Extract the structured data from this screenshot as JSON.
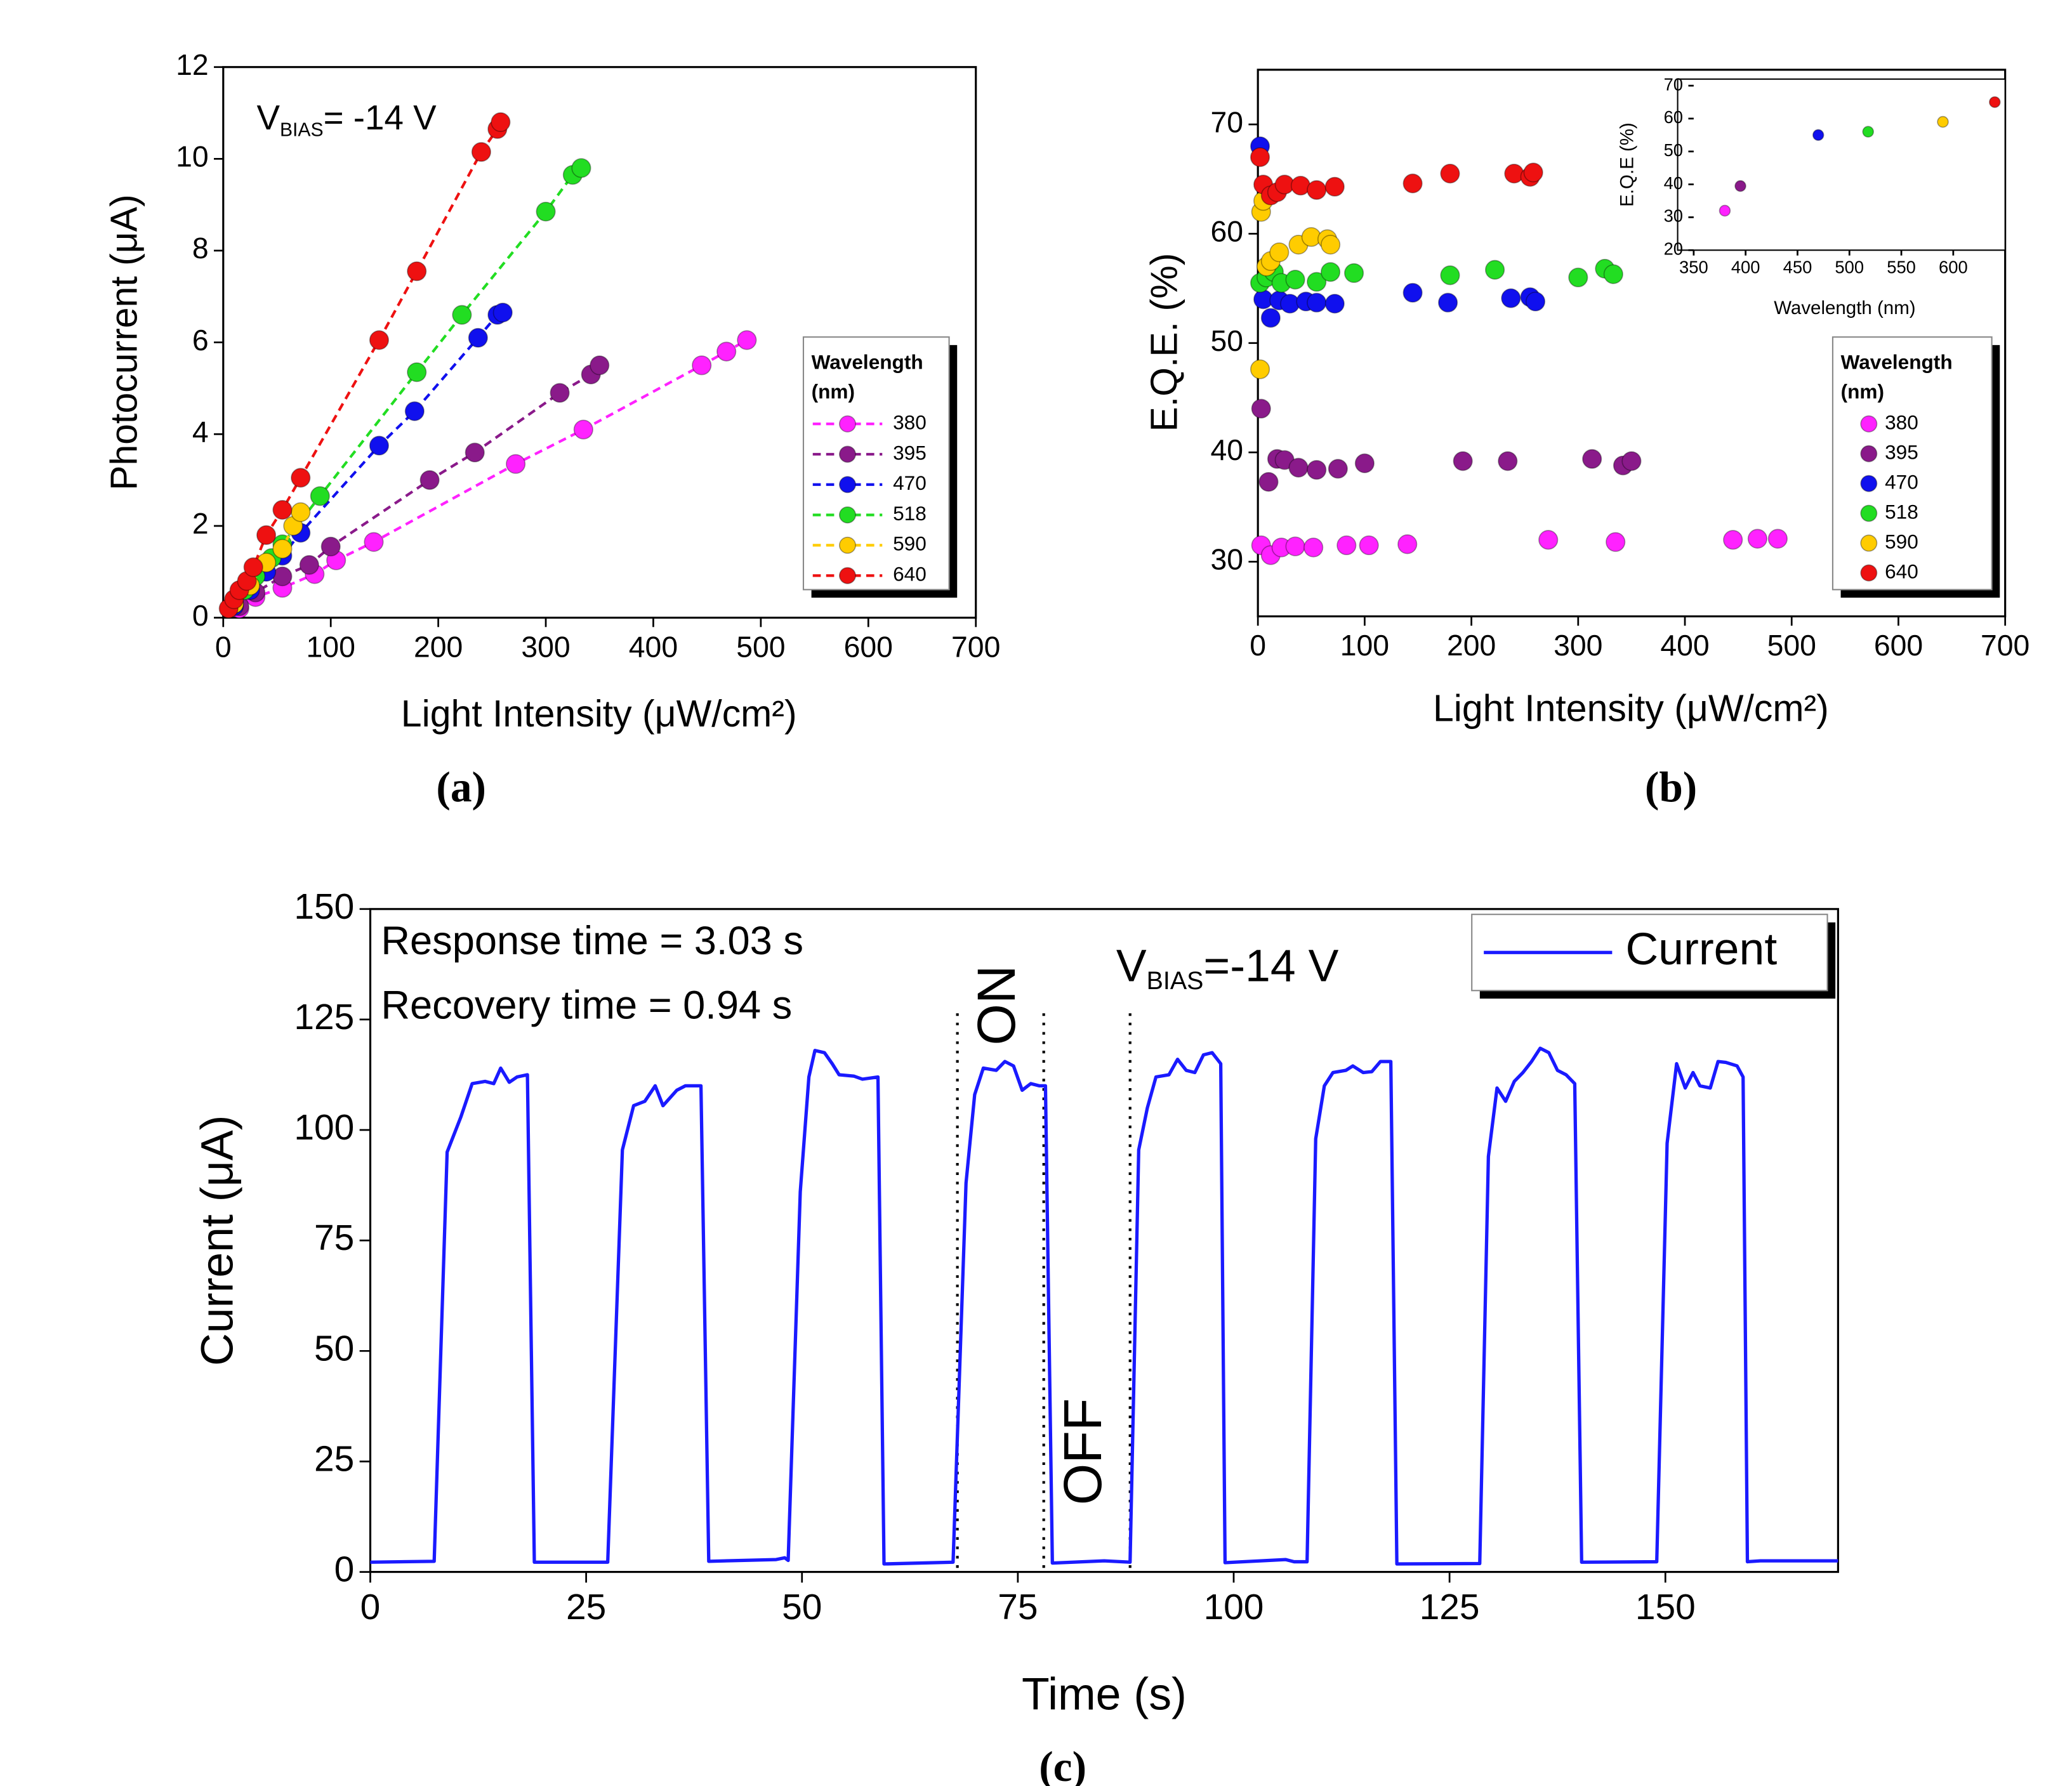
{
  "chart_data": [
    {
      "type": "scatter",
      "panel": "(a)",
      "fit_lines": true,
      "xlabel": "Light Intensity (μW/cm²)",
      "ylabel": "Photocurrent (μA)",
      "annotation": [
        "V",
        "BIAS",
        "= -14 V"
      ],
      "xlim": [
        0,
        700
      ],
      "xticks": [
        0,
        100,
        200,
        300,
        400,
        500,
        600,
        700
      ],
      "ylim": [
        0,
        12
      ],
      "yticks": [
        0,
        2,
        4,
        6,
        8,
        10,
        12
      ],
      "legend_title": [
        "Wavelength",
        "(nm)"
      ],
      "series": [
        {
          "name": "380",
          "color": "#ff22ff",
          "x": [
            15,
            30,
            55,
            85,
            105,
            140,
            272,
            335,
            445,
            468,
            487
          ],
          "values": [
            0.2,
            0.45,
            0.65,
            0.95,
            1.25,
            1.65,
            3.35,
            4.1,
            5.5,
            5.8,
            6.05
          ]
        },
        {
          "name": "395",
          "color": "#8a1a8a",
          "x": [
            15,
            30,
            55,
            80,
            100,
            192,
            234,
            313,
            342,
            350
          ],
          "values": [
            0.25,
            0.55,
            0.9,
            1.15,
            1.55,
            3.0,
            3.6,
            4.9,
            5.3,
            5.5
          ]
        },
        {
          "name": "470",
          "color": "#1010ee",
          "x": [
            10,
            25,
            40,
            55,
            72,
            145,
            178,
            237,
            255,
            260
          ],
          "values": [
            0.25,
            0.6,
            1.0,
            1.35,
            1.85,
            3.75,
            4.5,
            6.1,
            6.6,
            6.65
          ]
        },
        {
          "name": "518",
          "color": "#22dd22",
          "x": [
            10,
            20,
            30,
            45,
            55,
            90,
            180,
            222,
            300,
            325,
            333
          ],
          "values": [
            0.3,
            0.6,
            0.9,
            1.3,
            1.6,
            2.65,
            5.35,
            6.6,
            8.85,
            9.65,
            9.8
          ]
        },
        {
          "name": "590",
          "color": "#ffcc00",
          "x": [
            10,
            25,
            40,
            55,
            65,
            72
          ],
          "values": [
            0.3,
            0.7,
            1.2,
            1.5,
            2.0,
            2.3
          ]
        },
        {
          "name": "640",
          "color": "#ee1111",
          "x": [
            5,
            10,
            15,
            22,
            28,
            40,
            55,
            72,
            145,
            180,
            240,
            255,
            258
          ],
          "values": [
            0.2,
            0.4,
            0.6,
            0.8,
            1.1,
            1.8,
            2.35,
            3.05,
            6.05,
            7.55,
            10.15,
            10.65,
            10.8
          ]
        }
      ]
    },
    {
      "type": "scatter",
      "panel": "(b)",
      "xlabel": "Light Intensity (μW/cm²)",
      "ylabel": "E.Q.E. (%)",
      "xlim": [
        0,
        700
      ],
      "xticks": [
        0,
        100,
        200,
        300,
        400,
        500,
        600,
        700
      ],
      "ylim": [
        25,
        75
      ],
      "yticks": [
        30,
        40,
        50,
        60,
        70
      ],
      "legend_title": [
        "Wavelength",
        "(nm)"
      ],
      "series": [
        {
          "name": "380",
          "color": "#ff22ff",
          "x": [
            3,
            12,
            22,
            35,
            52,
            83,
            104,
            140,
            272,
            335,
            445,
            468,
            487
          ],
          "values": [
            31.5,
            30.6,
            31.3,
            31.4,
            31.3,
            31.5,
            31.5,
            31.6,
            32,
            31.8,
            32,
            32.1,
            32.1
          ]
        },
        {
          "name": "395",
          "color": "#8a1a8a",
          "x": [
            3,
            10,
            18,
            25,
            38,
            55,
            75,
            100,
            192,
            234,
            313,
            342,
            350
          ],
          "values": [
            44,
            37.3,
            39.4,
            39.3,
            38.6,
            38.4,
            38.5,
            39,
            39.2,
            39.2,
            39.4,
            38.8,
            39.2
          ]
        },
        {
          "name": "470",
          "color": "#1010ee",
          "x": [
            2,
            5,
            12,
            20,
            30,
            45,
            55,
            72,
            145,
            178,
            237,
            255,
            260
          ],
          "values": [
            68,
            54,
            52.3,
            53.9,
            53.6,
            53.8,
            53.7,
            53.6,
            54.6,
            53.7,
            54.1,
            54.2,
            53.8
          ]
        },
        {
          "name": "518",
          "color": "#22dd22",
          "x": [
            2,
            8,
            15,
            22,
            35,
            55,
            68,
            90,
            180,
            222,
            300,
            325,
            333
          ],
          "values": [
            55.5,
            56,
            56.5,
            55.5,
            55.8,
            55.6,
            56.5,
            56.4,
            56.2,
            56.7,
            56,
            56.8,
            56.3
          ]
        },
        {
          "name": "590",
          "color": "#ffcc00",
          "x": [
            2,
            3,
            5,
            8,
            12,
            20,
            38,
            50,
            65,
            68
          ],
          "values": [
            47.6,
            62,
            63,
            57,
            57.5,
            58.3,
            59,
            59.7,
            59.5,
            59
          ]
        },
        {
          "name": "640",
          "color": "#ee1111",
          "x": [
            2,
            5,
            12,
            18,
            25,
            40,
            55,
            72,
            145,
            180,
            240,
            255,
            258
          ],
          "values": [
            67,
            64.5,
            63.5,
            63.8,
            64.5,
            64.4,
            64,
            64.3,
            64.6,
            65.5,
            65.5,
            65.2,
            65.6
          ]
        }
      ]
    },
    {
      "type": "scatter",
      "inset": true,
      "xlabel": "Wavelength (nm)",
      "ylabel": "E.Q.E (%)",
      "xlim": [
        350,
        650
      ],
      "xticks": [
        350,
        400,
        450,
        500,
        550,
        600
      ],
      "ylim": [
        20,
        72
      ],
      "yticks": [
        20,
        30,
        40,
        50,
        60,
        70
      ],
      "x": [
        380,
        395,
        470,
        518,
        590,
        640
      ],
      "values": [
        32,
        39.5,
        55,
        56,
        59,
        65
      ],
      "colors": [
        "#ff22ff",
        "#8a1a8a",
        "#1010ee",
        "#22dd22",
        "#ffcc00",
        "#ee1111"
      ]
    },
    {
      "type": "line",
      "panel": "(c)",
      "xlabel": "Time (s)",
      "ylabel": "Current (μA)",
      "annotations": [
        "Response time = 3.03 s",
        "Recovery time = 0.94 s"
      ],
      "annotation": [
        "V",
        "BIAS",
        "=-14 V"
      ],
      "vlines": [
        68,
        78,
        88
      ],
      "period_labels": [
        "ON",
        "OFF"
      ],
      "xlim": [
        0,
        170
      ],
      "xticks": [
        0,
        25,
        50,
        75,
        100,
        125,
        150
      ],
      "ylim": [
        0,
        150
      ],
      "yticks": [
        0,
        25,
        50,
        75,
        100,
        125,
        150
      ],
      "series": [
        {
          "name": "Current",
          "color": "#1a1aff",
          "x": [
            0,
            7.4,
            8.9,
            10.5,
            11.8,
            13.3,
            14.3,
            15.1,
            16.1,
            17,
            18.2,
            19,
            27.5,
            29.2,
            30.5,
            31.8,
            33,
            33.9,
            35.5,
            36.5,
            38.3,
            39.2,
            47,
            48,
            48.4,
            49.8,
            50.8,
            51.5,
            52.6,
            53.5,
            54.3,
            56,
            57,
            58.8,
            59.5,
            67.5,
            69,
            70,
            71,
            72.5,
            73.5,
            74.5,
            75.5,
            76.5,
            77.5,
            78.2,
            79,
            85,
            88,
            89,
            90,
            91,
            92.5,
            93.5,
            94.5,
            95.5,
            96.5,
            97.5,
            98.5,
            99,
            106,
            107,
            108.5,
            109.5,
            110.5,
            111.5,
            113,
            113.8,
            115,
            116,
            117,
            118.2,
            118.9,
            128.5,
            129.5,
            130.5,
            131.5,
            132.5,
            133.5,
            134.5,
            135.5,
            136.5,
            137.5,
            138.5,
            139.5,
            140.3,
            149,
            150.2,
            151.3,
            152.3,
            153.2,
            154,
            155.2,
            156.1,
            157,
            158.3,
            159,
            159.5,
            161,
            170
          ],
          "values": [
            2.2,
            2.4,
            95,
            103,
            110.5,
            111,
            110.5,
            114,
            110.8,
            112,
            112.5,
            2.2,
            2.2,
            95.5,
            105.5,
            106.5,
            110,
            105.5,
            109,
            110,
            110,
            2.4,
            2.8,
            3.2,
            2.6,
            86,
            112,
            118,
            117.5,
            115,
            112.5,
            112.2,
            111.5,
            112,
            1.8,
            2.2,
            88,
            108,
            114,
            113.5,
            115.5,
            114.5,
            109,
            110.5,
            110,
            110,
            2,
            2.5,
            2.2,
            95.5,
            105,
            112,
            112.5,
            116,
            113.5,
            113,
            117,
            117.5,
            115,
            2.1,
            2.8,
            2.3,
            2.3,
            98,
            110,
            113,
            113.5,
            114.5,
            113,
            113.2,
            115.5,
            115.5,
            1.8,
            1.9,
            94,
            109.5,
            106.5,
            111,
            113,
            115.5,
            118.5,
            117.5,
            113.5,
            112.5,
            110.5,
            2.2,
            2.3,
            97,
            115,
            109.5,
            113,
            110,
            109.5,
            115.5,
            115.3,
            114.5,
            112,
            2.3,
            2.5,
            2.5
          ]
        }
      ]
    }
  ]
}
